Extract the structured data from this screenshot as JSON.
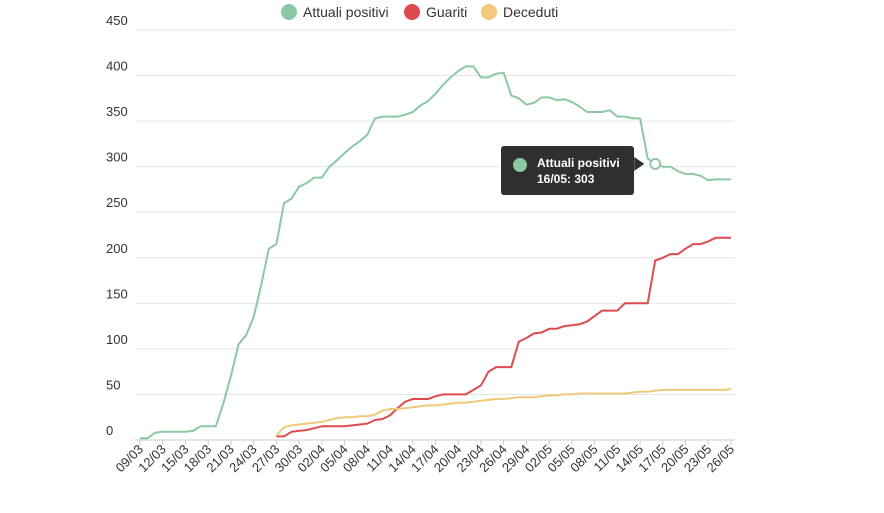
{
  "chart_data": {
    "type": "line",
    "title": "",
    "xlabel": "",
    "ylabel": "",
    "ylim": [
      0,
      450
    ],
    "yticks": [
      0,
      50,
      100,
      150,
      200,
      250,
      300,
      350,
      400,
      450
    ],
    "x_tick_labels": [
      "09/03",
      "12/03",
      "15/03",
      "18/03",
      "21/03",
      "24/03",
      "27/03",
      "30/03",
      "02/04",
      "05/04",
      "08/04",
      "11/04",
      "14/04",
      "17/04",
      "20/04",
      "23/04",
      "26/04",
      "29/04",
      "02/05",
      "05/05",
      "08/05",
      "11/05",
      "14/05",
      "17/05",
      "20/05",
      "23/05",
      "26/05"
    ],
    "legend_position": "top-center",
    "grid": true,
    "series": [
      {
        "name": "Attuali positivi",
        "color": "#8cc9a3",
        "x": [
          "09/03",
          "10/03",
          "11/03",
          "12/03",
          "13/03",
          "14/03",
          "15/03",
          "16/03",
          "17/03",
          "18/03",
          "19/03",
          "20/03",
          "21/03",
          "22/03",
          "23/03",
          "24/03",
          "25/03",
          "26/03",
          "27/03",
          "28/03",
          "29/03",
          "30/03",
          "31/03",
          "01/04",
          "02/04",
          "03/04",
          "04/04",
          "05/04",
          "06/04",
          "07/04",
          "08/04",
          "09/04",
          "10/04",
          "11/04",
          "12/04",
          "13/04",
          "14/04",
          "15/04",
          "16/04",
          "17/04",
          "18/04",
          "19/04",
          "20/04",
          "21/04",
          "22/04",
          "23/04",
          "24/04",
          "25/04",
          "26/04",
          "27/04",
          "28/04",
          "29/04",
          "30/04",
          "01/05",
          "02/05",
          "03/05",
          "04/05",
          "05/05",
          "06/05",
          "07/05",
          "08/05",
          "09/05",
          "10/05",
          "11/05",
          "12/05",
          "13/05",
          "14/05",
          "15/05",
          "16/05",
          "17/05",
          "18/05",
          "19/05",
          "20/05",
          "21/05",
          "22/05",
          "23/05",
          "24/05",
          "25/05",
          "26/05"
        ],
        "values": [
          2,
          2,
          8,
          9,
          9,
          9,
          9,
          10,
          15,
          15,
          15,
          40,
          70,
          105,
          115,
          135,
          170,
          210,
          215,
          260,
          265,
          278,
          282,
          288,
          288,
          300,
          307,
          315,
          322,
          328,
          335,
          353,
          355,
          355,
          355,
          357,
          360,
          367,
          372,
          380,
          390,
          398,
          405,
          410,
          410,
          398,
          398,
          402,
          403,
          378,
          375,
          368,
          370,
          376,
          376,
          373,
          374,
          371,
          366,
          360,
          360,
          360,
          362,
          355,
          355,
          353,
          353,
          309,
          303,
          300,
          300,
          295,
          292,
          292,
          290,
          285,
          286,
          286,
          286
        ]
      },
      {
        "name": "Guariti",
        "color": "#dd4b50",
        "x": [
          "27/03",
          "28/03",
          "29/03",
          "30/03",
          "31/03",
          "01/04",
          "02/04",
          "03/04",
          "04/04",
          "05/04",
          "06/04",
          "07/04",
          "08/04",
          "09/04",
          "10/04",
          "11/04",
          "12/04",
          "13/04",
          "14/04",
          "15/04",
          "16/04",
          "17/04",
          "18/04",
          "19/04",
          "20/04",
          "21/04",
          "22/04",
          "23/04",
          "24/04",
          "25/04",
          "26/04",
          "27/04",
          "28/04",
          "29/04",
          "30/04",
          "01/05",
          "02/05",
          "03/05",
          "04/05",
          "05/05",
          "06/05",
          "07/05",
          "08/05",
          "09/05",
          "10/05",
          "11/05",
          "12/05",
          "13/05",
          "14/05",
          "15/05",
          "16/05",
          "17/05",
          "18/05",
          "19/05",
          "20/05",
          "21/05",
          "22/05",
          "23/05",
          "24/05",
          "25/05",
          "26/05"
        ],
        "values": [
          4,
          4,
          9,
          10,
          11,
          13,
          15,
          15,
          15,
          15,
          16,
          17,
          18,
          22,
          23,
          27,
          35,
          42,
          45,
          45,
          45,
          48,
          50,
          50,
          50,
          50,
          55,
          60,
          75,
          80,
          80,
          80,
          108,
          112,
          117,
          118,
          122,
          122,
          125,
          126,
          127,
          130,
          136,
          142,
          142,
          142,
          150,
          150,
          150,
          150,
          197,
          200,
          204,
          204,
          210,
          215,
          215,
          218,
          222,
          222,
          222
        ]
      },
      {
        "name": "Deceduti",
        "color": "#f0c97a",
        "x": [
          "27/03",
          "28/03",
          "29/03",
          "30/03",
          "31/03",
          "01/04",
          "02/04",
          "03/04",
          "04/04",
          "05/04",
          "06/04",
          "07/04",
          "08/04",
          "09/04",
          "10/04",
          "11/04",
          "12/04",
          "13/04",
          "14/04",
          "15/04",
          "16/04",
          "17/04",
          "18/04",
          "19/04",
          "20/04",
          "21/04",
          "22/04",
          "23/04",
          "24/04",
          "25/04",
          "26/04",
          "27/04",
          "28/04",
          "29/04",
          "30/04",
          "01/05",
          "02/05",
          "03/05",
          "04/05",
          "05/05",
          "06/05",
          "07/05",
          "08/05",
          "09/05",
          "10/05",
          "11/05",
          "12/05",
          "13/05",
          "14/05",
          "15/05",
          "16/05",
          "17/05",
          "18/05",
          "19/05",
          "20/05",
          "21/05",
          "22/05",
          "23/05",
          "24/05",
          "25/05",
          "26/05"
        ],
        "values": [
          5,
          14,
          16,
          17,
          18,
          19,
          20,
          22,
          24,
          25,
          25,
          26,
          26,
          28,
          32,
          34,
          34,
          35,
          36,
          37,
          38,
          38,
          39,
          40,
          41,
          41,
          42,
          43,
          44,
          45,
          45,
          46,
          47,
          47,
          47,
          48,
          49,
          49,
          50,
          50,
          51,
          51,
          51,
          51,
          51,
          51,
          51,
          52,
          53,
          53,
          54,
          55,
          55,
          55,
          55,
          55,
          55,
          55,
          55,
          55,
          56
        ]
      }
    ],
    "tooltip": {
      "series": "Attuali positivi",
      "text": "16/05: 303",
      "x": "16/05",
      "value": 303
    }
  }
}
